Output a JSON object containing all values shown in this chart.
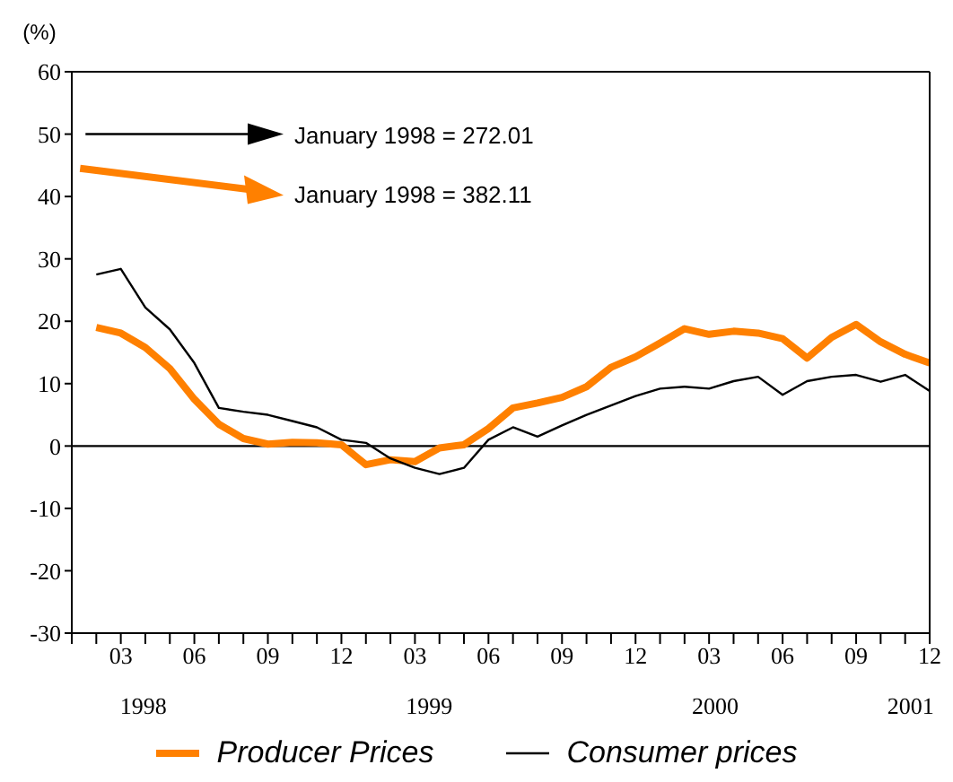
{
  "chart_data": {
    "type": "line",
    "ylabel": "(%)",
    "categories": [
      null,
      null,
      "03",
      null,
      null,
      "06",
      null,
      null,
      "09",
      null,
      null,
      "12",
      null,
      null,
      "03",
      null,
      null,
      "06",
      null,
      null,
      "09",
      null,
      null,
      "12",
      null,
      null,
      "03",
      null,
      null,
      "06",
      null,
      null,
      "09",
      null,
      null,
      "12"
    ],
    "series": [
      {
        "name": "Producer Prices",
        "color": "#ff8000",
        "values": [
          null,
          19.0,
          18.1,
          15.8,
          12.4,
          7.5,
          3.5,
          1.2,
          0.3,
          0.6,
          0.5,
          0.2,
          -3.0,
          -2.2,
          -2.5,
          -0.3,
          0.2,
          2.8,
          6.1,
          6.9,
          7.8,
          9.5,
          12.6,
          14.3,
          16.5,
          18.8,
          17.9,
          18.4,
          18.1,
          17.2,
          14.1,
          17.4,
          19.5,
          16.7,
          14.7,
          13.3
        ]
      },
      {
        "name": "Consumer prices",
        "color": "#000000",
        "values": [
          null,
          27.5,
          28.4,
          22.2,
          18.7,
          13.3,
          6.1,
          5.5,
          5.0,
          4.0,
          3.0,
          1.0,
          0.5,
          -2.0,
          -3.5,
          -4.5,
          -3.5,
          1.0,
          3.0,
          1.5,
          3.3,
          5.0,
          6.5,
          8.0,
          9.2,
          9.5,
          9.2,
          10.4,
          11.1,
          8.2,
          10.4,
          11.1,
          11.4,
          10.3,
          11.4,
          8.8
        ]
      }
    ],
    "ylim": [
      -30,
      60
    ],
    "yticks": [
      -30,
      -20,
      -10,
      0,
      10,
      20,
      30,
      40,
      50,
      60
    ],
    "ref_lines": [
      {
        "axis": "y",
        "value": 0,
        "color": "#000000"
      }
    ],
    "annotations": [
      "January 1998 = 272.01",
      "January 1998 = 382.11",
      "1998",
      "1999",
      "2000",
      "2001"
    ],
    "grid": false,
    "legend": "bottom",
    "marker": "none",
    "line_style": "solid"
  }
}
